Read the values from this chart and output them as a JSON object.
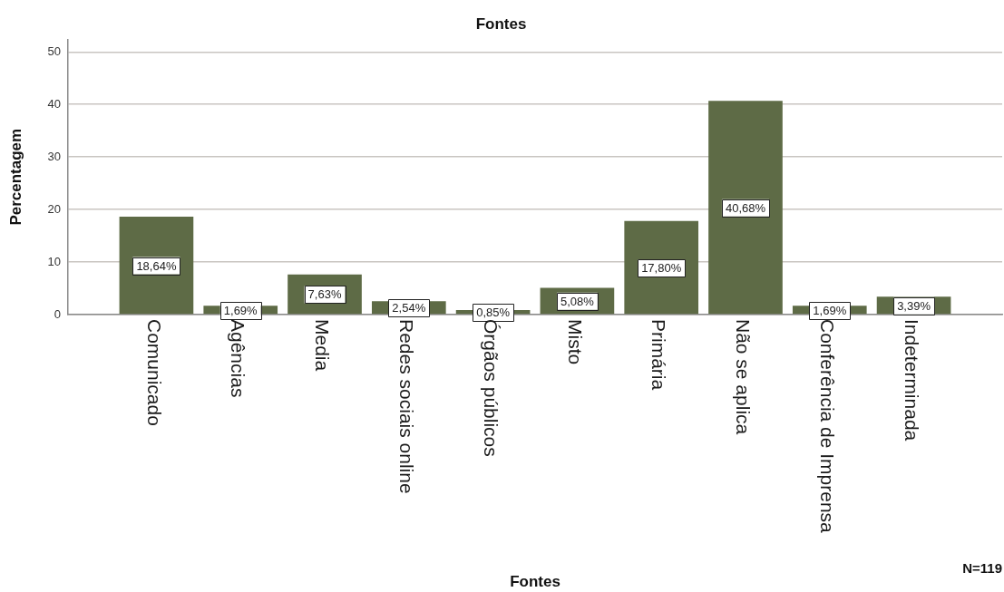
{
  "chart_data": {
    "type": "bar",
    "title": "Fontes",
    "xlabel": "Fontes",
    "ylabel": "Percentagem",
    "categories": [
      "Comunicado",
      "Agências",
      "Media",
      "Redes sociais online",
      "Órgãos públicos",
      "Misto",
      "Primária",
      "Não se aplica",
      "Conferência de Imprensa",
      "Indeterminada"
    ],
    "values": [
      18.64,
      1.69,
      7.63,
      2.54,
      0.85,
      5.08,
      17.8,
      40.68,
      1.69,
      3.39
    ],
    "value_labels": [
      "18,64%",
      "1,69%",
      "7,63%",
      "2,54%",
      "0,85%",
      "5,08%",
      "17,80%",
      "40,68%",
      "1,69%",
      "3,39%"
    ],
    "color": "#5e6b46",
    "ylim": [
      0,
      52.4
    ],
    "yticks": [
      0,
      10,
      20,
      30,
      40,
      50
    ],
    "grid": "y",
    "annotations": [
      "N=119"
    ]
  }
}
